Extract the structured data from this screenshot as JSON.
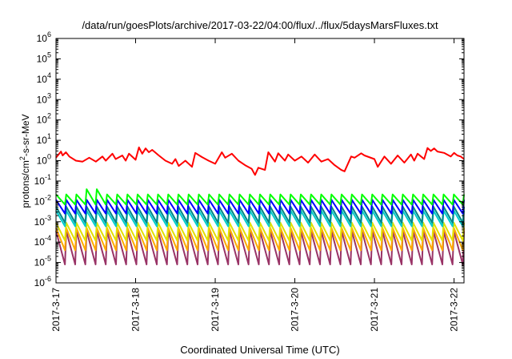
{
  "chart_data": {
    "type": "line",
    "title": "/data/run/goesPlots/archive/2017-03-22/04:00/flux/../flux/5daysMarsFluxes.txt",
    "xlabel": "Coordinated Universal Time (UTC)",
    "ylabel": "protons/cm²-s-sr-MeV",
    "ylabel_parts": {
      "prefix": "protons/cm",
      "sup": "2",
      "suffix": "-s-sr-MeV"
    },
    "yscale": "log",
    "ylim": [
      1e-06,
      1000000.0
    ],
    "y_ticks": [
      {
        "base": "10",
        "exp": "-6"
      },
      {
        "base": "10",
        "exp": "-5"
      },
      {
        "base": "10",
        "exp": "-4"
      },
      {
        "base": "10",
        "exp": "-3"
      },
      {
        "base": "10",
        "exp": "-2"
      },
      {
        "base": "10",
        "exp": "-1"
      },
      {
        "base": "10",
        "exp": "0"
      },
      {
        "base": "10",
        "exp": "1"
      },
      {
        "base": "10",
        "exp": "2"
      },
      {
        "base": "10",
        "exp": "3"
      },
      {
        "base": "10",
        "exp": "4"
      },
      {
        "base": "10",
        "exp": "5"
      },
      {
        "base": "10",
        "exp": "6"
      }
    ],
    "xlim": [
      "2017-03-17T00:00",
      "2017-03-22T03:00"
    ],
    "x_ticks": [
      {
        "value": "2017-03-17",
        "label": "2017-3-17"
      },
      {
        "value": "2017-03-18",
        "label": "2017-3-18"
      },
      {
        "value": "2017-03-19",
        "label": "2017-3-19"
      },
      {
        "value": "2017-03-20",
        "label": "2017-3-20"
      },
      {
        "value": "2017-03-21",
        "label": "2017-3-21"
      },
      {
        "value": "2017-03-22",
        "label": "2017-3-22"
      }
    ],
    "grid": false,
    "series": [
      {
        "color": "#ff0000",
        "x": [
          "2017-03-17T00:00",
          "2017-03-17T01:30",
          "2017-03-17T02:00",
          "2017-03-17T03:00",
          "2017-03-17T04:00",
          "2017-03-17T06:00",
          "2017-03-17T08:00",
          "2017-03-17T10:00",
          "2017-03-17T12:00",
          "2017-03-17T14:00",
          "2017-03-17T15:00",
          "2017-03-17T17:00",
          "2017-03-17T18:00",
          "2017-03-17T20:00",
          "2017-03-17T21:00",
          "2017-03-17T22:00",
          "2017-03-18T00:00",
          "2017-03-18T01:00",
          "2017-03-18T02:00",
          "2017-03-18T03:00",
          "2017-03-18T04:00",
          "2017-03-18T05:00",
          "2017-03-18T07:00",
          "2017-03-18T09:00",
          "2017-03-18T11:00",
          "2017-03-18T12:00",
          "2017-03-18T13:00",
          "2017-03-18T15:00",
          "2017-03-18T17:00",
          "2017-03-18T18:00",
          "2017-03-18T20:00",
          "2017-03-18T22:00",
          "2017-03-19T00:00",
          "2017-03-19T02:00",
          "2017-03-19T03:00",
          "2017-03-19T05:00",
          "2017-03-19T07:00",
          "2017-03-19T09:00",
          "2017-03-19T11:00",
          "2017-03-19T12:00",
          "2017-03-19T13:00",
          "2017-03-19T15:00",
          "2017-03-19T16:00",
          "2017-03-19T18:00",
          "2017-03-19T19:00",
          "2017-03-19T21:00",
          "2017-03-19T22:00",
          "2017-03-20T00:00",
          "2017-03-20T02:00",
          "2017-03-20T04:00",
          "2017-03-20T06:00",
          "2017-03-20T08:00",
          "2017-03-20T10:00",
          "2017-03-20T12:00",
          "2017-03-20T14:00",
          "2017-03-20T15:00",
          "2017-03-20T17:00",
          "2017-03-20T18:00",
          "2017-03-20T20:00",
          "2017-03-20T21:00",
          "2017-03-21T00:00",
          "2017-03-21T01:00",
          "2017-03-21T03:00",
          "2017-03-21T05:00",
          "2017-03-21T07:00",
          "2017-03-21T09:00",
          "2017-03-21T11:00",
          "2017-03-21T12:00",
          "2017-03-21T13:00",
          "2017-03-21T15:00",
          "2017-03-21T16:00",
          "2017-03-21T17:00",
          "2017-03-21T18:00",
          "2017-03-21T19:00",
          "2017-03-21T21:00",
          "2017-03-21T23:00",
          "2017-03-22T00:00",
          "2017-03-22T01:00",
          "2017-03-22T02:00",
          "2017-03-22T03:00"
        ],
        "y": [
          1.4,
          2.8,
          1.8,
          2.6,
          1.6,
          1.0,
          0.9,
          1.4,
          0.9,
          1.6,
          1.0,
          2.2,
          1.2,
          1.8,
          1.0,
          2.2,
          1.1,
          4.5,
          2.2,
          4.0,
          2.6,
          3.4,
          1.8,
          1.0,
          0.7,
          1.2,
          0.55,
          1.0,
          0.5,
          2.4,
          1.5,
          1.0,
          0.7,
          2.6,
          1.4,
          2.2,
          1.0,
          0.6,
          0.4,
          0.2,
          0.45,
          0.35,
          2.6,
          0.9,
          2.3,
          1.0,
          2.0,
          1.0,
          1.6,
          0.8,
          2.0,
          0.9,
          1.2,
          0.6,
          0.35,
          0.3,
          1.6,
          1.4,
          2.3,
          1.8,
          1.2,
          0.5,
          1.6,
          0.7,
          1.8,
          0.8,
          2.0,
          1.0,
          2.2,
          1.2,
          4.2,
          3.0,
          4.0,
          2.8,
          2.4,
          1.6,
          2.4,
          1.8,
          1.6,
          1.2
        ]
      },
      {
        "color": "#00ff00",
        "peak": 0.022,
        "trough": 0.007,
        "peak_x": [
          "2017-03-17T10:00"
        ],
        "peak_boost": 1.8
      },
      {
        "color": "#0000ff",
        "peak": 0.012,
        "trough": 0.0025
      },
      {
        "color": "#008888",
        "peak": 0.0055,
        "trough": 0.0009
      },
      {
        "color": "#00cccc",
        "peak": 0.0035,
        "trough": 0.0006
      },
      {
        "color": "#e0e000",
        "peak": 0.0009,
        "trough": 0.00012
      },
      {
        "color": "#ffaa00",
        "peak": 0.0005,
        "trough": 4e-05
      },
      {
        "color": "#993366",
        "peak": 0.00035,
        "trough": 8e-06
      }
    ]
  }
}
